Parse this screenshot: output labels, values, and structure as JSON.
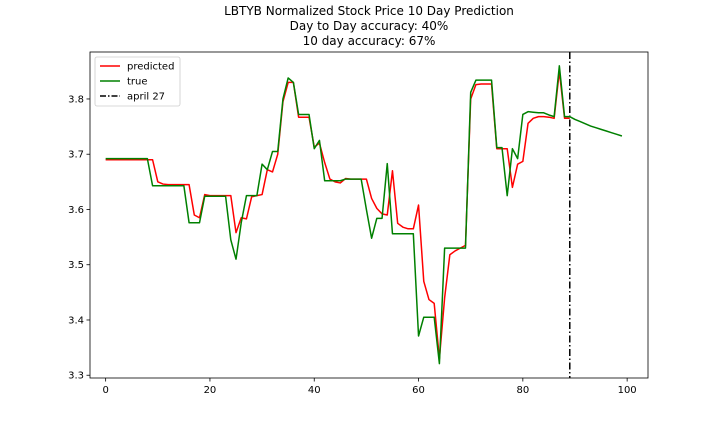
{
  "chart_data": {
    "type": "line",
    "title": "LBTYB Normalized Stock Price 10 Day Prediction",
    "subtitle_lines": [
      "Day to Day accuracy: 40%",
      "10 day accuracy: 67%"
    ],
    "xlabel": "",
    "ylabel": "",
    "xlim": [
      -3,
      104
    ],
    "ylim": [
      3.295,
      3.885
    ],
    "x_ticks": [
      0,
      20,
      40,
      60,
      80,
      100
    ],
    "y_ticks": [
      3.3,
      3.4,
      3.5,
      3.6,
      3.7,
      3.8
    ],
    "y_tick_labels": [
      "3.3",
      "3.4",
      "3.5",
      "3.6",
      "3.7",
      "3.8"
    ],
    "legend": {
      "placement": "top-left"
    },
    "series": [
      {
        "name": "predicted",
        "color": "#ff0000",
        "x": [
          0,
          1,
          2,
          3,
          4,
          5,
          6,
          7,
          8,
          9,
          10,
          11,
          12,
          13,
          14,
          15,
          16,
          17,
          18,
          19,
          20,
          21,
          22,
          23,
          24,
          25,
          26,
          27,
          28,
          29,
          30,
          31,
          32,
          33,
          34,
          35,
          36,
          37,
          38,
          39,
          40,
          41,
          42,
          43,
          44,
          45,
          46,
          47,
          48,
          49,
          50,
          51,
          52,
          53,
          54,
          55,
          56,
          57,
          58,
          59,
          60,
          61,
          62,
          63,
          64,
          65,
          66,
          67,
          68,
          69,
          70,
          71,
          72,
          73,
          74,
          75,
          76,
          77,
          78,
          79,
          80,
          81,
          82,
          83,
          84,
          85,
          86,
          87,
          88,
          89
        ],
        "y": [
          3.69,
          3.69,
          3.69,
          3.69,
          3.69,
          3.69,
          3.69,
          3.69,
          3.69,
          3.69,
          3.65,
          3.646,
          3.645,
          3.645,
          3.645,
          3.645,
          3.645,
          3.59,
          3.585,
          3.627,
          3.625,
          3.625,
          3.625,
          3.625,
          3.625,
          3.558,
          3.585,
          3.583,
          3.623,
          3.625,
          3.627,
          3.672,
          3.668,
          3.7,
          3.795,
          3.83,
          3.83,
          3.767,
          3.767,
          3.767,
          3.713,
          3.72,
          3.685,
          3.655,
          3.65,
          3.648,
          3.656,
          3.655,
          3.655,
          3.655,
          3.655,
          3.62,
          3.602,
          3.592,
          3.59,
          3.67,
          3.575,
          3.568,
          3.565,
          3.565,
          3.608,
          3.47,
          3.437,
          3.43,
          3.33,
          3.44,
          3.518,
          3.525,
          3.53,
          3.535,
          3.8,
          3.826,
          3.827,
          3.827,
          3.827,
          3.71,
          3.71,
          3.71,
          3.64,
          3.682,
          3.687,
          3.756,
          3.765,
          3.768,
          3.768,
          3.767,
          3.765,
          3.85,
          3.765,
          3.765
        ]
      },
      {
        "name": "true",
        "color": "#008000",
        "x": [
          0,
          1,
          2,
          3,
          4,
          5,
          6,
          7,
          8,
          9,
          10,
          11,
          12,
          13,
          14,
          15,
          16,
          17,
          18,
          19,
          20,
          21,
          22,
          23,
          24,
          25,
          26,
          27,
          28,
          29,
          30,
          31,
          32,
          33,
          34,
          35,
          36,
          37,
          38,
          39,
          40,
          41,
          42,
          43,
          44,
          45,
          46,
          47,
          48,
          49,
          50,
          51,
          52,
          53,
          54,
          55,
          56,
          57,
          58,
          59,
          60,
          61,
          62,
          63,
          64,
          65,
          66,
          67,
          68,
          69,
          70,
          71,
          72,
          73,
          74,
          75,
          76,
          77,
          78,
          79,
          80,
          81,
          82,
          83,
          84,
          85,
          86,
          87,
          88,
          89,
          90,
          91,
          92,
          93,
          94,
          95,
          96,
          97,
          98,
          99
        ],
        "y": [
          3.692,
          3.692,
          3.692,
          3.692,
          3.692,
          3.692,
          3.692,
          3.692,
          3.692,
          3.643,
          3.643,
          3.643,
          3.643,
          3.643,
          3.643,
          3.643,
          3.576,
          3.576,
          3.576,
          3.624,
          3.624,
          3.624,
          3.624,
          3.624,
          3.545,
          3.51,
          3.576,
          3.625,
          3.625,
          3.625,
          3.682,
          3.672,
          3.705,
          3.705,
          3.8,
          3.838,
          3.83,
          3.772,
          3.772,
          3.772,
          3.71,
          3.725,
          3.652,
          3.652,
          3.652,
          3.652,
          3.655,
          3.655,
          3.655,
          3.655,
          3.6,
          3.548,
          3.584,
          3.584,
          3.683,
          3.556,
          3.556,
          3.556,
          3.556,
          3.556,
          3.371,
          3.405,
          3.405,
          3.405,
          3.321,
          3.53,
          3.53,
          3.53,
          3.53,
          3.53,
          3.812,
          3.834,
          3.834,
          3.834,
          3.834,
          3.712,
          3.712,
          3.625,
          3.71,
          3.692,
          3.772,
          3.777,
          3.776,
          3.775,
          3.775,
          3.771,
          3.768,
          3.86,
          3.768,
          3.768,
          3.763,
          3.759,
          3.755,
          3.751,
          3.748,
          3.745,
          3.742,
          3.739,
          3.736,
          3.733
        ]
      }
    ],
    "marker": {
      "name": "april 27",
      "x": 89,
      "color": "#000000",
      "style": "dash-dot"
    }
  }
}
